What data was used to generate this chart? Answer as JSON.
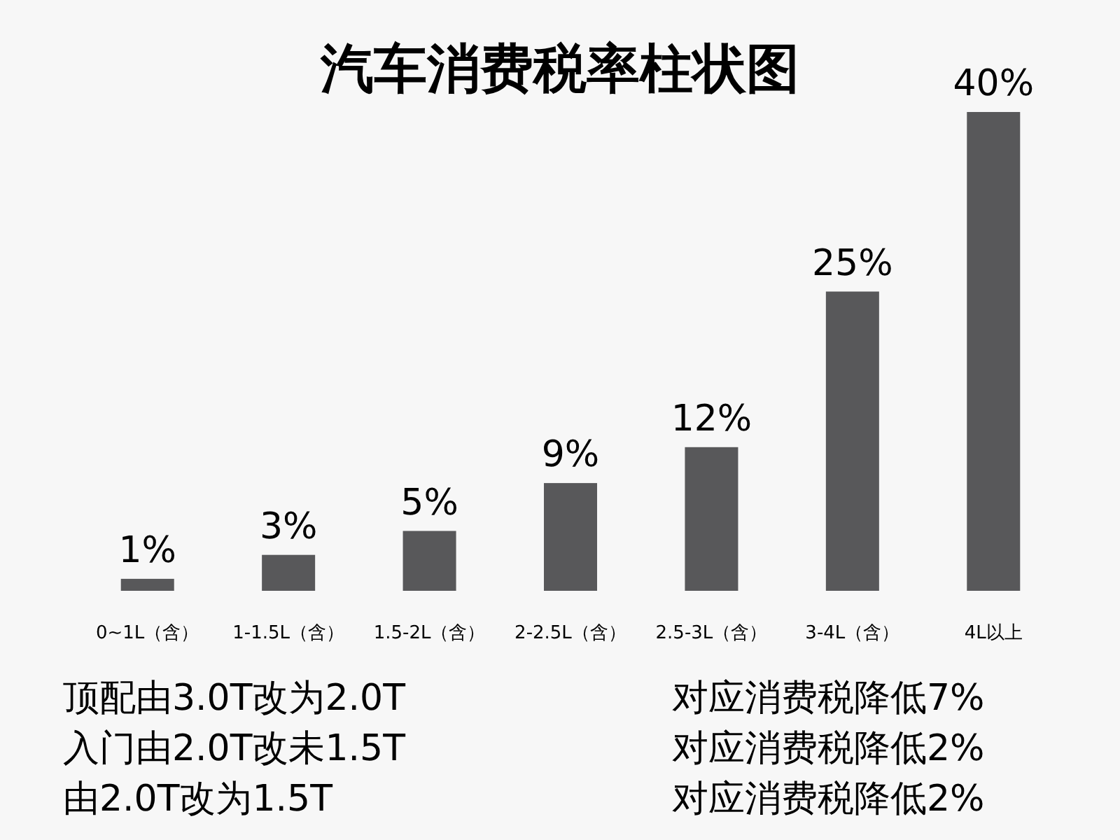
{
  "chart_data": {
    "type": "bar",
    "title": "汽车消费税率柱状图",
    "categories": [
      "0~1L（含）",
      "1-1.5L（含）",
      "1.5-2L（含）",
      "2-2.5L（含）",
      "2.5-3L（含）",
      "3-4L（含）",
      "4L以上"
    ],
    "values": [
      1,
      3,
      5,
      9,
      12,
      25,
      40
    ],
    "value_labels": [
      "1%",
      "3%",
      "5%",
      "9%",
      "12%",
      "25%",
      "40%"
    ],
    "color": "#58585a",
    "annotations": [
      "顶配由3.0T改为2.0T",
      "对应消费税降低7%",
      "入门由2.0T改未1.5T",
      "对应消费税降低2%",
      "由2.0T改为1.5T",
      "对应消费税降低2%"
    ]
  }
}
